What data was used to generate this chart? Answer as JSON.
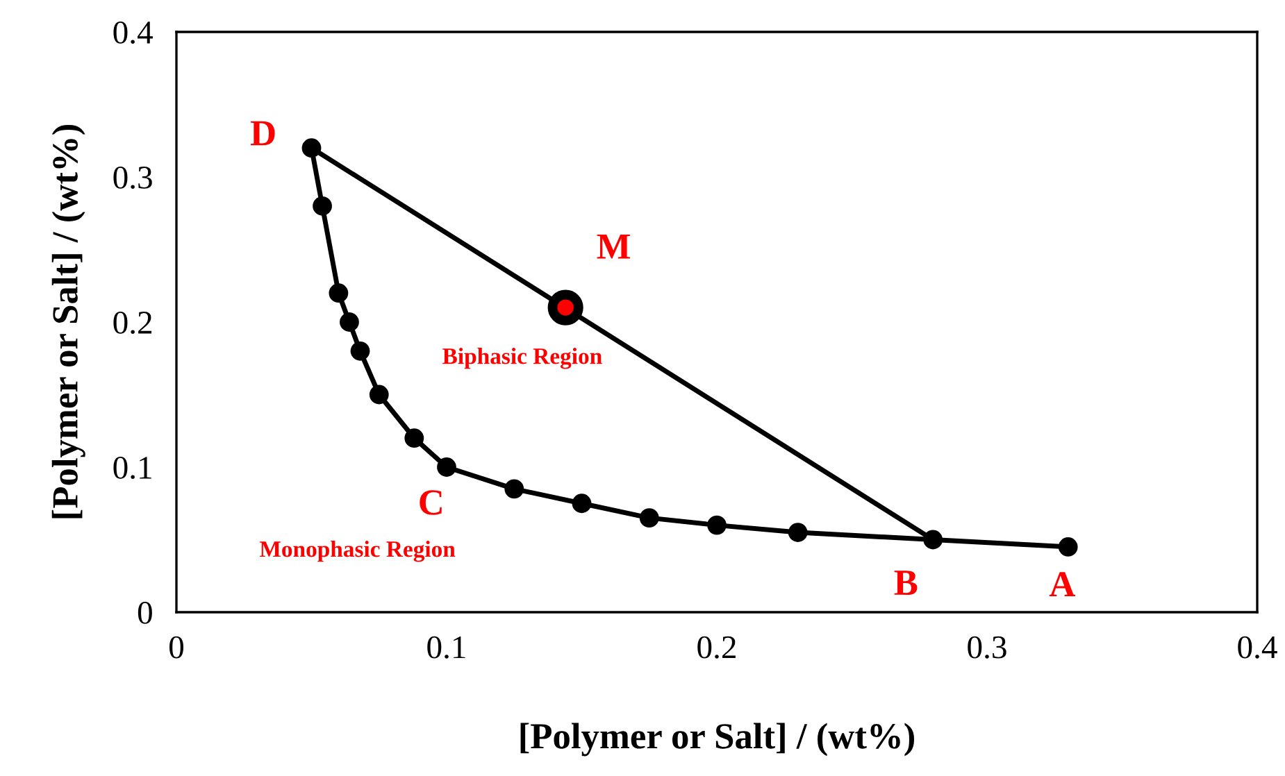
{
  "chart_data": {
    "type": "line",
    "xlabel": "[Polymer or Salt] / (wt%)",
    "ylabel": "[Polymer or Salt] / (wt%)",
    "xlim": [
      0,
      0.4
    ],
    "ylim": [
      0,
      0.4
    ],
    "xticks": [
      0,
      0.1,
      0.2,
      0.3,
      0.4
    ],
    "yticks": [
      0,
      0.1,
      0.2,
      0.3,
      0.4
    ],
    "grid": false,
    "legend": false,
    "series": [
      {
        "color": "#000000",
        "marker": "circle",
        "x": [
          0.05,
          0.054,
          0.06,
          0.064,
          0.068,
          0.075,
          0.088,
          0.1,
          0.125,
          0.15,
          0.175,
          0.2,
          0.23,
          0.28,
          0.33
        ],
        "values": [
          0.32,
          0.28,
          0.22,
          0.2,
          0.18,
          0.15,
          0.12,
          0.1,
          0.085,
          0.075,
          0.065,
          0.06,
          0.055,
          0.05,
          0.045
        ]
      },
      {
        "color": "#000000",
        "marker": "none",
        "x": [
          0.05,
          0.28
        ],
        "values": [
          0.32,
          0.05
        ]
      },
      {
        "type": "scatter",
        "color": "#ff0000",
        "marker": "circle",
        "x": [
          0.144
        ],
        "values": [
          0.21
        ]
      }
    ],
    "annotations": [
      {
        "text": "D",
        "x": 0.05,
        "y": 0.32
      },
      {
        "text": "M",
        "x": 0.144,
        "y": 0.21
      },
      {
        "text": "C",
        "x": 0.1,
        "y": 0.1
      },
      {
        "text": "B",
        "x": 0.28,
        "y": 0.05
      },
      {
        "text": "A",
        "x": 0.33,
        "y": 0.045
      },
      "Biphasic Region",
      "Monophasic Region"
    ]
  }
}
